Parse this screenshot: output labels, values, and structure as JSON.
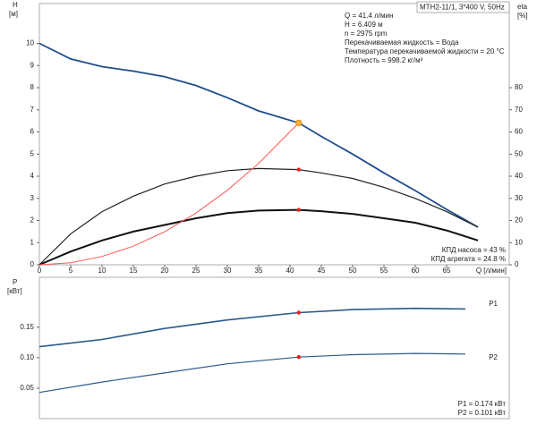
{
  "chart_data": [
    {
      "type": "line",
      "title": "MTH2-11/1, 3*400 V, 50Hz",
      "y_label": "H",
      "y_unit": "[м]",
      "y2_label": "eta",
      "y2_unit": "[%]",
      "x_label": "Q [л/мин]",
      "annotations": [
        "Q = 41.4 л/мин",
        "H = 6.409 м",
        "n = 2975 rpm",
        "Перекачиваемая жидкость = Вода",
        "Температура перекачиваемой жидкости = 20 °C",
        "Плотность = 998.2 кг/м³"
      ],
      "notes": [
        "КПД насоса = 43 %",
        "КПД агрегата = 24.8 %"
      ],
      "x": [
        0,
        5,
        10,
        15,
        20,
        25,
        30,
        35,
        41.4,
        45,
        50,
        55,
        60,
        65,
        70
      ],
      "series": [
        {
          "color": "#1f4e8c",
          "width": 1.8,
          "values": [
            10,
            9.3,
            8.95,
            8.75,
            8.5,
            8.1,
            7.55,
            6.95,
            6.409,
            5.8,
            5.0,
            4.15,
            3.35,
            2.5,
            1.7
          ]
        },
        {
          "color": "#222222",
          "width": 1.2,
          "axis": "y2",
          "values": [
            0,
            14,
            24,
            31,
            36.5,
            40,
            42.5,
            43.5,
            43,
            41.5,
            39,
            35,
            30,
            24,
            17
          ]
        },
        {
          "color": "#111111",
          "width": 2,
          "axis": "y2",
          "values": [
            0,
            6,
            11,
            15,
            18,
            21,
            23.3,
            24.5,
            24.8,
            24.2,
            23,
            21,
            19,
            15.5,
            11
          ]
        },
        {
          "color": "#ff5a5a",
          "width": 1,
          "values": [
            0,
            0.093,
            0.374,
            0.841,
            1.496,
            2.337,
            3.365,
            4.581,
            6.409,
            null,
            null,
            null,
            null,
            null,
            null
          ]
        }
      ],
      "points": [
        {
          "x": 41.4,
          "y": 6.409,
          "color": "#f5b041"
        },
        {
          "x": 41.4,
          "y": 43,
          "color": "#e52020",
          "axis": "y2"
        },
        {
          "x": 41.4,
          "y": 24.8,
          "color": "#e52020",
          "axis": "y2"
        }
      ],
      "xlim": [
        0,
        75
      ],
      "xticks": [
        0,
        5,
        10,
        15,
        20,
        25,
        30,
        35,
        40,
        45,
        50,
        55,
        60,
        65
      ],
      "ylim": [
        0,
        11.8
      ],
      "yticks": [
        0,
        1,
        2,
        3,
        4,
        5,
        6,
        7,
        8,
        9,
        10
      ],
      "y2lim": [
        0,
        118
      ],
      "y2ticks": [
        0,
        10,
        20,
        30,
        40,
        50,
        60,
        70,
        80
      ]
    },
    {
      "type": "line",
      "y_label": "P",
      "y_unit": "[кВт]",
      "notes": [
        "P1 = 0.174 кВт",
        "P2 = 0.101 кВт"
      ],
      "x": [
        0,
        10,
        20,
        30,
        41.4,
        50,
        60,
        68
      ],
      "series": [
        {
          "name": "P1",
          "color": "#2a5a8c",
          "width": 1.6,
          "values": [
            0.118,
            0.13,
            0.148,
            0.162,
            0.174,
            0.179,
            0.181,
            0.18
          ]
        },
        {
          "name": "P2",
          "color": "#2a5a8c",
          "width": 1.2,
          "values": [
            0.043,
            0.06,
            0.075,
            0.09,
            0.101,
            0.105,
            0.107,
            0.106
          ]
        }
      ],
      "points": [
        {
          "x": 41.4,
          "y": 0.174,
          "color": "#e52020"
        },
        {
          "x": 41.4,
          "y": 0.101,
          "color": "#e52020"
        }
      ],
      "xlim": [
        0,
        75
      ],
      "ylim": [
        0,
        0.232
      ],
      "yticks": [
        {
          "value": 0.05,
          "label": "0.05"
        },
        {
          "value": 0.1,
          "label": "0.10"
        },
        0.15
      ]
    }
  ]
}
